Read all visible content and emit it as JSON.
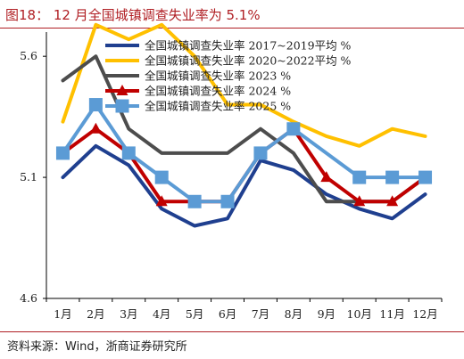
{
  "header": {
    "title": "图18： 12 月全国城镇调查失业率为 5.1%"
  },
  "footer": {
    "source": "资料来源：Wind，浙商证券研究所"
  },
  "colors": {
    "accent": "#b01f24",
    "series": [
      "#1f3f8f",
      "#ffc000",
      "#4d4d4d",
      "#c00000",
      "#5b9bd5"
    ]
  },
  "chart_data": {
    "type": "line",
    "title": "",
    "xlabel": "",
    "ylabel": "",
    "categories": [
      "1月",
      "2月",
      "3月",
      "4月",
      "5月",
      "6月",
      "7月",
      "8月",
      "9月",
      "10月",
      "11月",
      "12月"
    ],
    "ylim": [
      4.6,
      5.7
    ],
    "yticks": [
      "4.6",
      "5.1",
      "5.6"
    ],
    "ytick_values": [
      4.6,
      5.1,
      5.6
    ],
    "grid": false,
    "legend_position": "top-right",
    "series": [
      {
        "name": "全国城镇调查失业率 2017~2019平均 %",
        "color": "#1f3f8f",
        "marker": "none",
        "values": [
          5.1,
          5.23,
          5.15,
          4.97,
          4.9,
          4.93,
          5.17,
          5.13,
          5.03,
          4.97,
          4.93,
          5.03
        ]
      },
      {
        "name": "全国城镇调查失业率 2020~2022平均 %",
        "color": "#ffc000",
        "marker": "none",
        "values": [
          5.33,
          5.73,
          5.67,
          5.73,
          5.6,
          5.4,
          5.4,
          5.33,
          5.27,
          5.23,
          5.3,
          5.27
        ]
      },
      {
        "name": "全国城镇调查失业率 2023 %",
        "color": "#4d4d4d",
        "marker": "none",
        "values": [
          5.5,
          5.6,
          5.3,
          5.2,
          5.2,
          5.2,
          5.3,
          5.2,
          5.0,
          5.0,
          5.0,
          5.1
        ]
      },
      {
        "name": "全国城镇调查失业率 2024 %",
        "color": "#c00000",
        "marker": "triangle",
        "values": [
          5.2,
          5.3,
          5.2,
          5.0,
          5.0,
          5.0,
          5.2,
          5.3,
          5.1,
          5.0,
          5.0,
          5.1
        ]
      },
      {
        "name": "全国城镇调查失业率 2025 %",
        "color": "#5b9bd5",
        "marker": "square",
        "values": [
          5.2,
          5.4,
          5.2,
          5.1,
          5.0,
          5.0,
          5.2,
          5.3,
          null,
          5.1,
          5.1,
          5.1
        ]
      }
    ]
  }
}
